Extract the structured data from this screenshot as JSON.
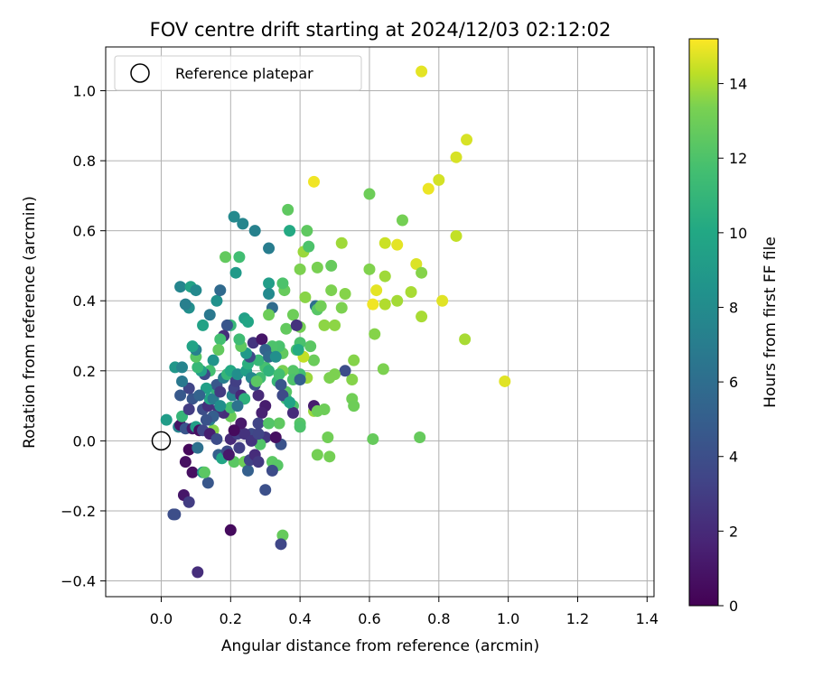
{
  "chart_data": {
    "type": "scatter",
    "title": "FOV centre drift starting at 2024/12/03 02:12:02",
    "xlabel": "Angular distance from reference (arcmin)",
    "ylabel": "Rotation from reference (arcmin)",
    "xlim": [
      -0.16,
      1.42
    ],
    "ylim": [
      -0.445,
      1.125
    ],
    "x_ticks": [
      0.0,
      0.2,
      0.4,
      0.6,
      0.8,
      1.0,
      1.2,
      1.4
    ],
    "y_ticks": [
      -0.4,
      -0.2,
      0.0,
      0.2,
      0.4,
      0.6,
      0.8,
      1.0
    ],
    "x_tick_labels": [
      "0.0",
      "0.2",
      "0.4",
      "0.6",
      "0.8",
      "1.0",
      "1.2",
      "1.4"
    ],
    "y_tick_labels": [
      "−0.4",
      "−0.2",
      "0.0",
      "0.2",
      "0.4",
      "0.6",
      "0.8",
      "1.0"
    ],
    "grid": true,
    "legend": {
      "position": "top-left",
      "entries": [
        {
          "label": "Reference platepar",
          "marker": "open-circle"
        }
      ]
    },
    "reference_point": {
      "x": 0.0,
      "y": 0.0
    },
    "colorbar": {
      "label": "Hours from first FF file",
      "colormap": "viridis",
      "range": [
        0,
        15.2
      ],
      "ticks": [
        0,
        2,
        4,
        6,
        8,
        10,
        12,
        14
      ],
      "tick_labels": [
        "0",
        "2",
        "4",
        "6",
        "8",
        "10",
        "12",
        "14"
      ]
    },
    "points": [
      [
        0.75,
        1.055,
        14.6
      ],
      [
        0.88,
        0.86,
        14.3
      ],
      [
        0.85,
        0.81,
        14.3
      ],
      [
        0.77,
        0.72,
        14.8
      ],
      [
        0.8,
        0.745,
        14.2
      ],
      [
        0.44,
        0.74,
        14.9
      ],
      [
        0.6,
        0.705,
        11.8
      ],
      [
        0.85,
        0.585,
        13.8
      ],
      [
        0.68,
        0.56,
        14.6
      ],
      [
        0.645,
        0.565,
        14.0
      ],
      [
        0.695,
        0.63,
        12.0
      ],
      [
        0.735,
        0.505,
        14.4
      ],
      [
        0.75,
        0.48,
        12.4
      ],
      [
        0.6,
        0.49,
        12.3
      ],
      [
        0.61,
        0.39,
        14.9
      ],
      [
        0.62,
        0.43,
        14.6
      ],
      [
        0.645,
        0.47,
        13.0
      ],
      [
        0.645,
        0.39,
        13.4
      ],
      [
        0.68,
        0.4,
        13.1
      ],
      [
        0.72,
        0.425,
        13.2
      ],
      [
        0.81,
        0.4,
        14.5
      ],
      [
        0.75,
        0.355,
        13.2
      ],
      [
        0.875,
        0.29,
        13.2
      ],
      [
        0.99,
        0.17,
        14.5
      ],
      [
        0.615,
        0.305,
        12.4
      ],
      [
        0.64,
        0.205,
        12.2
      ],
      [
        0.61,
        0.005,
        11.6
      ],
      [
        0.745,
        0.01,
        11.6
      ],
      [
        0.52,
        0.565,
        13.0
      ],
      [
        0.49,
        0.5,
        11.6
      ],
      [
        0.45,
        0.495,
        12.1
      ],
      [
        0.41,
        0.54,
        12.9
      ],
      [
        0.4,
        0.49,
        12.2
      ],
      [
        0.42,
        0.6,
        11.4
      ],
      [
        0.425,
        0.555,
        10.9
      ],
      [
        0.365,
        0.66,
        11.4
      ],
      [
        0.37,
        0.6,
        9.2
      ],
      [
        0.53,
        0.42,
        12.4
      ],
      [
        0.52,
        0.38,
        12.2
      ],
      [
        0.49,
        0.43,
        12.2
      ],
      [
        0.5,
        0.33,
        12.6
      ],
      [
        0.47,
        0.33,
        12.6
      ],
      [
        0.445,
        0.385,
        5.5
      ],
      [
        0.45,
        0.375,
        11.2
      ],
      [
        0.46,
        0.385,
        11.9
      ],
      [
        0.415,
        0.41,
        12.5
      ],
      [
        0.38,
        0.36,
        11.8
      ],
      [
        0.4,
        0.325,
        12.0
      ],
      [
        0.355,
        0.43,
        11.6
      ],
      [
        0.35,
        0.45,
        10.9
      ],
      [
        0.555,
        0.23,
        12.4
      ],
      [
        0.55,
        0.175,
        12.4
      ],
      [
        0.53,
        0.2,
        3.6
      ],
      [
        0.5,
        0.19,
        12.2
      ],
      [
        0.485,
        0.18,
        12.2
      ],
      [
        0.44,
        0.23,
        11.7
      ],
      [
        0.41,
        0.24,
        13.8
      ],
      [
        0.43,
        0.27,
        11.3
      ],
      [
        0.4,
        0.28,
        10.8
      ],
      [
        0.39,
        0.26,
        10.8
      ],
      [
        0.36,
        0.32,
        11.5
      ],
      [
        0.35,
        0.25,
        11.5
      ],
      [
        0.34,
        0.27,
        10.8
      ],
      [
        0.32,
        0.38,
        5.3
      ],
      [
        0.31,
        0.45,
        8.4
      ],
      [
        0.31,
        0.42,
        7.2
      ],
      [
        0.31,
        0.36,
        11.8
      ],
      [
        0.32,
        0.27,
        10.9
      ],
      [
        0.31,
        0.55,
        6.4
      ],
      [
        0.21,
        0.64,
        7.1
      ],
      [
        0.235,
        0.62,
        6.9
      ],
      [
        0.27,
        0.6,
        6.6
      ],
      [
        0.185,
        0.525,
        11.5
      ],
      [
        0.225,
        0.525,
        10.5
      ],
      [
        0.215,
        0.48,
        8.2
      ],
      [
        0.55,
        0.12,
        11.9
      ],
      [
        0.555,
        0.1,
        11.8
      ],
      [
        0.47,
        0.09,
        11.8
      ],
      [
        0.44,
        0.085,
        12.9
      ],
      [
        0.44,
        0.1,
        1.2
      ],
      [
        0.45,
        0.085,
        11.8
      ],
      [
        0.42,
        0.18,
        12.9
      ],
      [
        0.4,
        0.19,
        10.6
      ],
      [
        0.38,
        0.2,
        11.1
      ],
      [
        0.38,
        0.175,
        10.9
      ],
      [
        0.4,
        0.175,
        4.6
      ],
      [
        0.35,
        0.2,
        12.1
      ],
      [
        0.36,
        0.14,
        11.2
      ],
      [
        0.36,
        0.12,
        10.5
      ],
      [
        0.38,
        0.1,
        10.9
      ],
      [
        0.4,
        0.05,
        11.1
      ],
      [
        0.34,
        0.05,
        11.4
      ],
      [
        0.38,
        0.08,
        1.9
      ],
      [
        0.4,
        0.04,
        10.9
      ],
      [
        0.335,
        0.17,
        10.1
      ],
      [
        0.3,
        0.21,
        10.7
      ],
      [
        0.285,
        0.18,
        10.4
      ],
      [
        0.31,
        0.2,
        9.8
      ],
      [
        0.28,
        0.13,
        1.8
      ],
      [
        0.3,
        0.1,
        1.2
      ],
      [
        0.29,
        0.08,
        1.4
      ],
      [
        0.28,
        0.05,
        3.1
      ],
      [
        0.3,
        0.01,
        2.4
      ],
      [
        0.31,
        0.05,
        11.1
      ],
      [
        0.32,
        -0.06,
        11.3
      ],
      [
        0.335,
        -0.07,
        11.2
      ],
      [
        0.32,
        -0.085,
        3.5
      ],
      [
        0.3,
        -0.14,
        3.7
      ],
      [
        0.345,
        -0.01,
        3.9
      ],
      [
        0.45,
        -0.04,
        12.0
      ],
      [
        0.485,
        -0.045,
        12.0
      ],
      [
        0.48,
        0.01,
        11.9
      ],
      [
        0.35,
        -0.27,
        11.6
      ],
      [
        0.345,
        -0.295,
        3.2
      ],
      [
        0.2,
        -0.255,
        0.4
      ],
      [
        0.105,
        -0.375,
        2.0
      ],
      [
        0.035,
        -0.21,
        3.6
      ],
      [
        0.04,
        -0.21,
        3.6
      ],
      [
        0.065,
        -0.155,
        0.9
      ],
      [
        0.08,
        -0.175,
        2.7
      ],
      [
        0.07,
        -0.06,
        0.6
      ],
      [
        0.09,
        -0.09,
        0.6
      ],
      [
        0.08,
        -0.025,
        0.3
      ],
      [
        0.12,
        -0.09,
        8.0
      ],
      [
        0.135,
        -0.12,
        4.1
      ],
      [
        0.125,
        -0.09,
        11.3
      ],
      [
        0.105,
        -0.02,
        5.6
      ],
      [
        0.15,
        0.03,
        12.4
      ],
      [
        0.14,
        0.06,
        6.6
      ],
      [
        0.165,
        -0.04,
        4.6
      ],
      [
        0.175,
        -0.05,
        9.0
      ],
      [
        0.19,
        -0.03,
        3.5
      ],
      [
        0.2,
        0.005,
        1.8
      ],
      [
        0.22,
        0.02,
        2.8
      ],
      [
        0.225,
        -0.02,
        2.8
      ],
      [
        0.21,
        -0.06,
        11.3
      ],
      [
        0.24,
        -0.06,
        11.8
      ],
      [
        0.25,
        -0.085,
        4.6
      ],
      [
        0.255,
        -0.055,
        3.0
      ],
      [
        0.27,
        -0.04,
        1.9
      ],
      [
        0.28,
        -0.06,
        2.5
      ],
      [
        0.285,
        -0.01,
        11.0
      ],
      [
        0.26,
        0.02,
        3.4
      ],
      [
        0.24,
        0.02,
        2.2
      ],
      [
        0.23,
        0.05,
        1.0
      ],
      [
        0.2,
        0.07,
        11.7
      ],
      [
        0.18,
        0.08,
        1.9
      ],
      [
        0.165,
        0.09,
        2.2
      ],
      [
        0.15,
        0.07,
        4.5
      ],
      [
        0.12,
        0.09,
        3.6
      ],
      [
        0.09,
        0.12,
        4.0
      ],
      [
        0.08,
        0.15,
        3.1
      ],
      [
        0.06,
        0.17,
        6.1
      ],
      [
        0.055,
        0.13,
        4.2
      ],
      [
        0.04,
        0.21,
        8.0
      ],
      [
        0.06,
        0.21,
        6.8
      ],
      [
        0.015,
        0.06,
        8.3
      ],
      [
        0.05,
        0.04,
        6.7
      ],
      [
        0.055,
        0.045,
        0.8
      ],
      [
        0.07,
        0.035,
        4.0
      ],
      [
        0.09,
        0.035,
        1.1
      ],
      [
        0.1,
        0.04,
        8.5
      ],
      [
        0.11,
        0.03,
        0.6
      ],
      [
        0.12,
        0.03,
        3.2
      ],
      [
        0.13,
        0.06,
        3.9
      ],
      [
        0.135,
        0.1,
        2.1
      ],
      [
        0.14,
        0.12,
        8.9
      ],
      [
        0.15,
        0.12,
        6.3
      ],
      [
        0.155,
        0.15,
        9.8
      ],
      [
        0.16,
        0.16,
        4.1
      ],
      [
        0.17,
        0.14,
        2.6
      ],
      [
        0.18,
        0.18,
        6.4
      ],
      [
        0.19,
        0.19,
        10.0
      ],
      [
        0.2,
        0.2,
        9.2
      ],
      [
        0.205,
        0.13,
        6.7
      ],
      [
        0.21,
        0.15,
        3.1
      ],
      [
        0.215,
        0.17,
        2.8
      ],
      [
        0.22,
        0.19,
        7.5
      ],
      [
        0.23,
        0.13,
        1.7
      ],
      [
        0.24,
        0.12,
        9.7
      ],
      [
        0.245,
        0.2,
        8.5
      ],
      [
        0.25,
        0.22,
        9.5
      ],
      [
        0.26,
        0.18,
        7.0
      ],
      [
        0.27,
        0.16,
        3.8
      ],
      [
        0.275,
        0.17,
        11.3
      ],
      [
        0.28,
        0.23,
        10.1
      ],
      [
        0.255,
        0.24,
        3.4
      ],
      [
        0.245,
        0.25,
        8.1
      ],
      [
        0.23,
        0.27,
        11.4
      ],
      [
        0.225,
        0.29,
        10.4
      ],
      [
        0.2,
        0.33,
        10.1
      ],
      [
        0.19,
        0.33,
        4.0
      ],
      [
        0.18,
        0.3,
        2.0
      ],
      [
        0.17,
        0.29,
        10.6
      ],
      [
        0.165,
        0.26,
        11.5
      ],
      [
        0.15,
        0.23,
        7.8
      ],
      [
        0.14,
        0.2,
        10.6
      ],
      [
        0.125,
        0.19,
        3.4
      ],
      [
        0.115,
        0.2,
        8.6
      ],
      [
        0.105,
        0.21,
        10.1
      ],
      [
        0.1,
        0.24,
        11.2
      ],
      [
        0.1,
        0.26,
        6.6
      ],
      [
        0.09,
        0.27,
        8.8
      ],
      [
        0.08,
        0.38,
        7.5
      ],
      [
        0.07,
        0.39,
        6.5
      ],
      [
        0.055,
        0.44,
        6.9
      ],
      [
        0.085,
        0.44,
        8.7
      ],
      [
        0.1,
        0.43,
        7.1
      ],
      [
        0.12,
        0.33,
        8.7
      ],
      [
        0.14,
        0.36,
        6.1
      ],
      [
        0.16,
        0.4,
        7.6
      ],
      [
        0.17,
        0.43,
        5.2
      ],
      [
        0.24,
        0.35,
        8.6
      ],
      [
        0.25,
        0.34,
        8.9
      ],
      [
        0.265,
        0.28,
        2.3
      ],
      [
        0.29,
        0.29,
        0.9
      ],
      [
        0.3,
        0.26,
        4.8
      ],
      [
        0.31,
        0.24,
        5.1
      ],
      [
        0.33,
        0.24,
        7.5
      ],
      [
        0.34,
        0.19,
        10.6
      ],
      [
        0.345,
        0.16,
        4.0
      ],
      [
        0.35,
        0.13,
        3.4
      ],
      [
        0.37,
        0.11,
        8.8
      ],
      [
        0.39,
        0.33,
        2.2
      ],
      [
        0.395,
        0.26,
        9.3
      ],
      [
        0.2,
        0.095,
        10.6
      ],
      [
        0.22,
        0.1,
        5.7
      ],
      [
        0.17,
        0.1,
        7.4
      ],
      [
        0.13,
        0.15,
        8.5
      ],
      [
        0.11,
        0.13,
        4.8
      ],
      [
        0.14,
        0.02,
        1.3
      ],
      [
        0.16,
        0.005,
        3.5
      ],
      [
        0.195,
        -0.04,
        1.0
      ],
      [
        0.21,
        0.03,
        0.4
      ],
      [
        0.26,
        0.0,
        2.3
      ],
      [
        0.28,
        0.02,
        3.1
      ],
      [
        0.33,
        0.01,
        0.6
      ],
      [
        0.06,
        0.07,
        10.0
      ],
      [
        0.08,
        0.09,
        2.7
      ]
    ]
  }
}
